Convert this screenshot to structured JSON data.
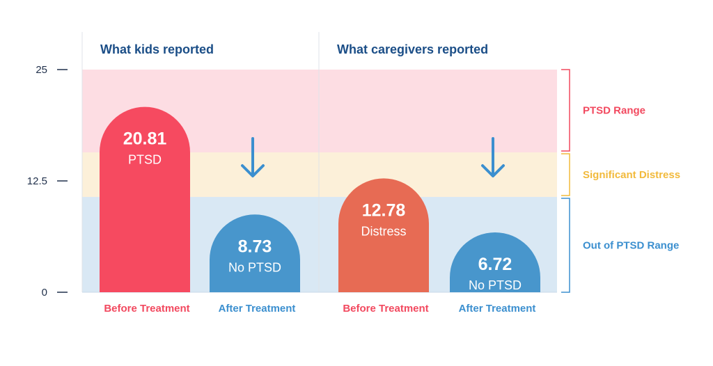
{
  "colors": {
    "ptsd_band": "#fddde3",
    "distress_band": "#fcf0d9",
    "out_band": "#d9e8f4",
    "bar_red": "#f64a60",
    "bar_blue": "#4896cc",
    "bar_orange": "#e76b54",
    "title": "#1b4e87",
    "axis_text": "#1f2f4a",
    "ptsd_text": "#f2495f",
    "distress_text": "#f2ba3c",
    "out_text": "#3b8fcf"
  },
  "chart_data": {
    "type": "bar",
    "ylim": [
      0,
      25
    ],
    "yticks": [
      {
        "value": 25,
        "label": "25"
      },
      {
        "value": 12.5,
        "label": "12.5"
      },
      {
        "value": 0,
        "label": "0"
      }
    ],
    "ranges": [
      {
        "name": "PTSD Range",
        "from": 15.7,
        "to": 25
      },
      {
        "name": "Significant Distress",
        "from": 10.7,
        "to": 15.7
      },
      {
        "name": "Out of PTSD Range",
        "from": 0,
        "to": 10.7
      }
    ],
    "panels": [
      {
        "title": "What kids reported",
        "bars": [
          {
            "category": "Before Treatment",
            "value": 20.81,
            "value_label": "20.81",
            "status": "PTSD",
            "color": "#f64a60"
          },
          {
            "category": "After Treatment",
            "value": 8.73,
            "value_label": "8.73",
            "status": "No PTSD",
            "color": "#4896cc"
          }
        ]
      },
      {
        "title": "What caregivers reported",
        "bars": [
          {
            "category": "Before Treatment",
            "value": 12.78,
            "value_label": "12.78",
            "status": "Distress",
            "color": "#e76b54"
          },
          {
            "category": "After Treatment",
            "value": 6.72,
            "value_label": "6.72",
            "status": "No PTSD",
            "color": "#4896cc"
          }
        ]
      }
    ]
  }
}
